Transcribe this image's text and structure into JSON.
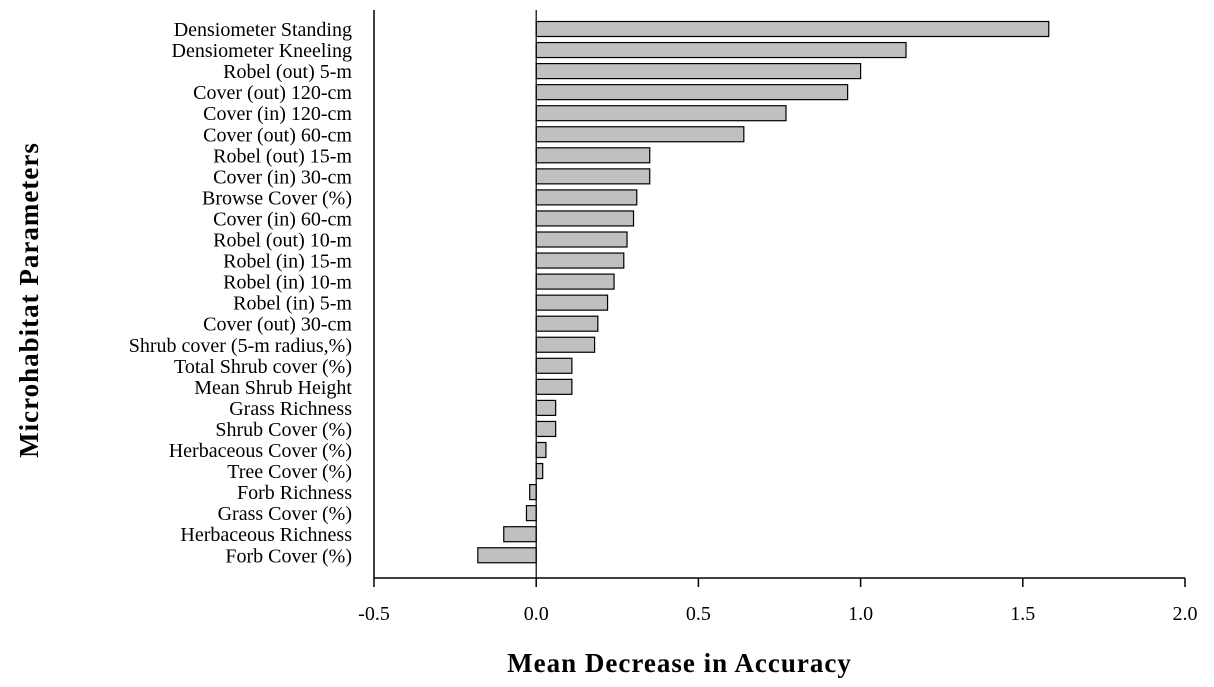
{
  "chart_data": {
    "type": "bar",
    "orientation": "horizontal",
    "xlabel": "Mean Decrease in Accuracy",
    "ylabel": "Microhabitat Parameters",
    "xlim": [
      -0.5,
      2.0
    ],
    "xticks": [
      "-0.5",
      "0.0",
      "0.5",
      "1.0",
      "1.5",
      "2.0"
    ],
    "grid": false,
    "legend": "none",
    "bar_color": "#c0c0c0",
    "categories": [
      "Densiometer Standing",
      "Densiometer Kneeling",
      "Robel (out) 5-m",
      "Cover (out) 120-cm",
      "Cover (in) 120-cm",
      "Cover (out) 60-cm",
      "Robel (out) 15-m",
      "Cover (in) 30-cm",
      "Browse Cover (%)",
      "Cover (in) 60-cm",
      "Robel (out) 10-m",
      "Robel (in) 15-m",
      "Robel (in) 10-m",
      "Robel (in) 5-m",
      "Cover (out) 30-cm",
      "Shrub cover (5-m radius,%)",
      "Total Shrub cover (%)",
      "Mean Shrub Height",
      "Grass Richness",
      "Shrub Cover (%)",
      "Herbaceous Cover (%)",
      "Tree Cover (%)",
      "Forb Richness",
      "Grass Cover (%)",
      "Herbaceous Richness",
      "Forb Cover (%)"
    ],
    "values": [
      1.58,
      1.14,
      1.0,
      0.96,
      0.77,
      0.64,
      0.35,
      0.35,
      0.31,
      0.3,
      0.28,
      0.27,
      0.24,
      0.22,
      0.19,
      0.18,
      0.11,
      0.11,
      0.06,
      0.06,
      0.03,
      0.02,
      -0.02,
      -0.03,
      -0.1,
      -0.18
    ]
  }
}
